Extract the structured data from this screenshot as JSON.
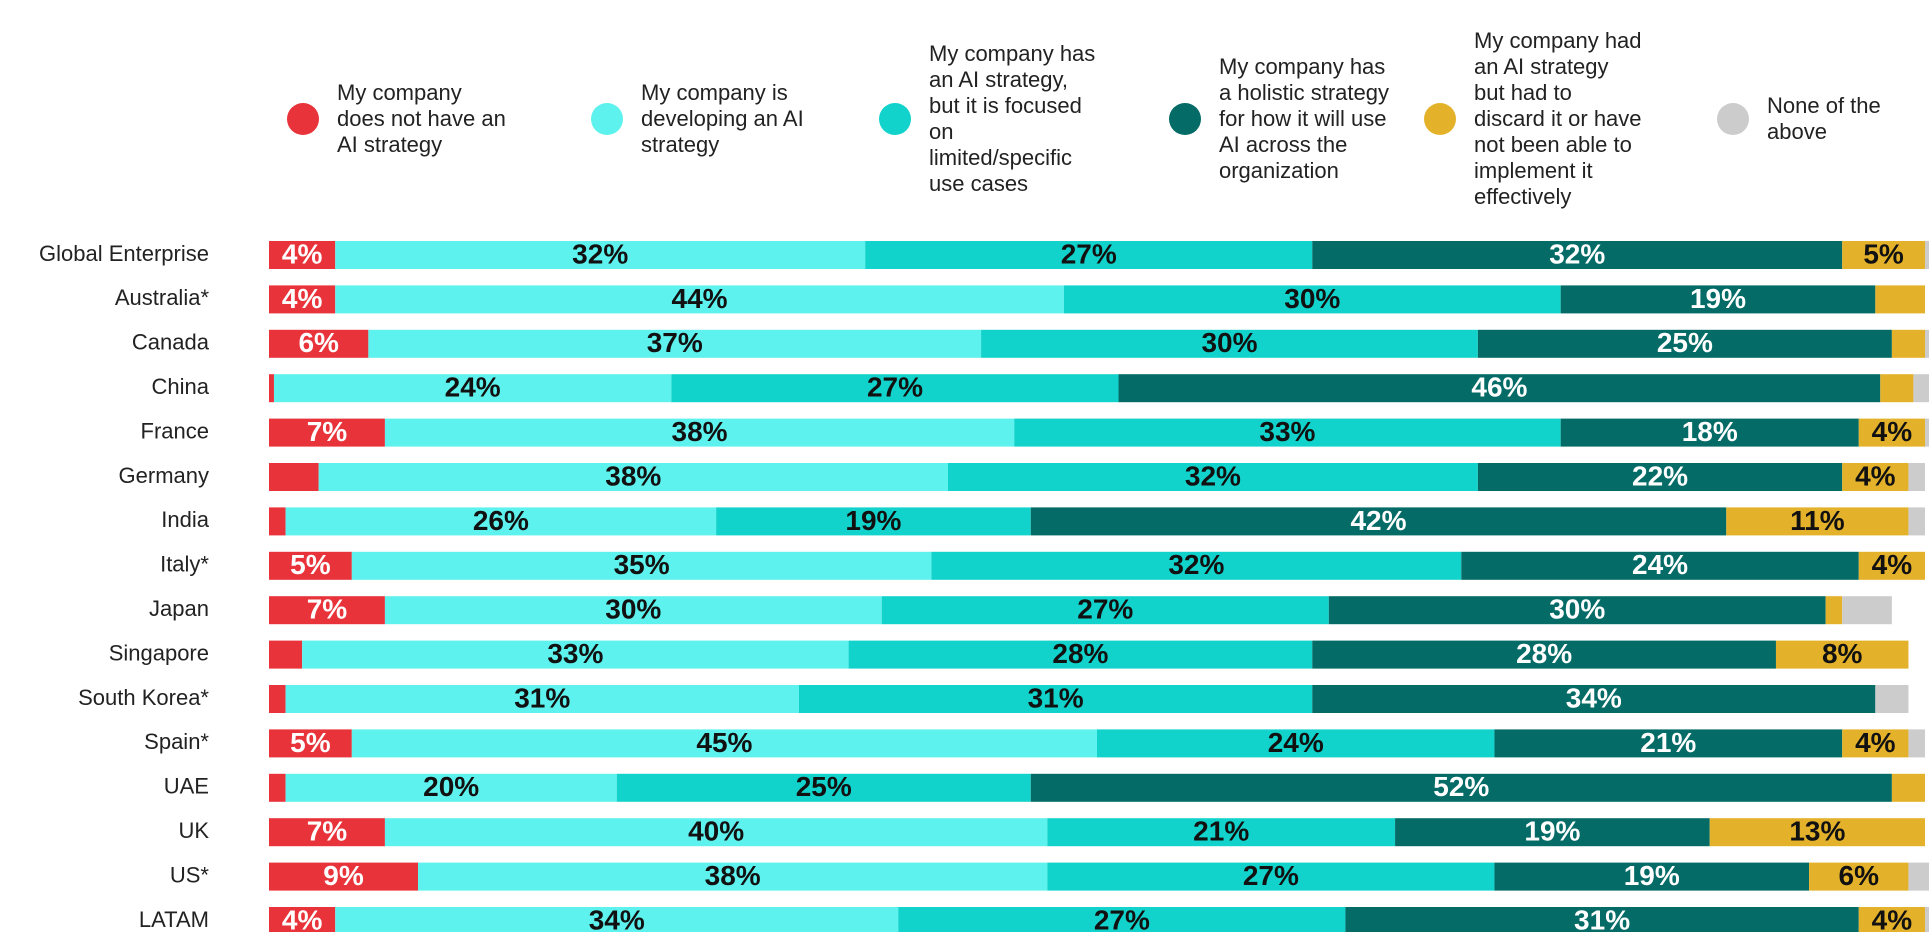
{
  "chart_data": {
    "type": "stacked-bar-horizontal",
    "categories": [
      "Global Enterprise",
      "Australia*",
      "Canada",
      "China",
      "France",
      "Germany",
      "India",
      "Italy*",
      "Japan",
      "Singapore",
      "South Korea*",
      "Spain*",
      "UAE",
      "UK",
      "US*",
      "LATAM"
    ],
    "xlim": [
      0,
      100
    ],
    "series": [
      {
        "name": "My company does not have an AI strategy",
        "color": "#e8333a",
        "label_color": "#ffffff",
        "values": [
          4,
          4,
          6,
          0.3,
          7,
          3,
          1,
          5,
          7,
          2,
          1,
          5,
          1,
          7,
          9,
          4
        ],
        "value_labels": [
          "4%",
          "4%",
          "6%",
          null,
          "7%",
          null,
          null,
          "5%",
          "7%",
          null,
          null,
          "5%",
          null,
          "7%",
          "9%",
          "4%"
        ]
      },
      {
        "name": "My company is developing an AI strategy",
        "color": "#5ef2ee",
        "label_color": "#111111",
        "values": [
          32,
          44,
          37,
          24,
          38,
          38,
          26,
          35,
          30,
          33,
          31,
          45,
          20,
          40,
          38,
          34
        ],
        "value_labels": [
          "32%",
          "44%",
          "37%",
          "24%",
          "38%",
          "38%",
          "26%",
          "35%",
          "30%",
          "33%",
          "31%",
          "45%",
          "20%",
          "40%",
          "38%",
          "34%"
        ]
      },
      {
        "name": "My company has an AI strategy, but it is focused on limited/specific use cases",
        "color": "#12d3cb",
        "label_color": "#111111",
        "values": [
          27,
          30,
          30,
          27,
          33,
          32,
          19,
          32,
          27,
          28,
          31,
          24,
          25,
          21,
          27,
          27
        ],
        "value_labels": [
          "27%",
          "30%",
          "30%",
          "27%",
          "33%",
          "32%",
          "19%",
          "32%",
          "27%",
          "28%",
          "31%",
          "24%",
          "25%",
          "21%",
          "27%",
          "27%"
        ]
      },
      {
        "name": "My company has a holistic strategy for how it will use AI across the organization",
        "color": "#046b66",
        "label_color": "#ffffff",
        "values": [
          32,
          19,
          25,
          46,
          18,
          22,
          42,
          24,
          30,
          28,
          34,
          21,
          52,
          19,
          19,
          31
        ],
        "value_labels": [
          "32%",
          "19%",
          "25%",
          "46%",
          "18%",
          "22%",
          "42%",
          "24%",
          "30%",
          "28%",
          "34%",
          "21%",
          "52%",
          "19%",
          "19%",
          "31%"
        ]
      },
      {
        "name": "My company had an AI strategy but had to discard it or have not been able to implement it effectively",
        "color": "#e4b12a",
        "label_color": "#111111",
        "values": [
          5,
          3,
          2,
          2,
          4,
          4,
          11,
          4,
          1,
          8,
          0,
          4,
          2,
          13,
          6,
          4
        ],
        "value_labels": [
          "5%",
          null,
          null,
          null,
          "4%",
          "4%",
          "11%",
          "4%",
          null,
          "8%",
          null,
          "4%",
          null,
          "13%",
          "6%",
          "4%"
        ]
      },
      {
        "name": "None of the above",
        "color": "#cccccc",
        "label_color": "#111111",
        "values": [
          1,
          0,
          2,
          1,
          1,
          1,
          1,
          0,
          3,
          0,
          2,
          1,
          0,
          0,
          2,
          1
        ],
        "value_labels": [
          null,
          null,
          null,
          null,
          null,
          null,
          null,
          null,
          null,
          null,
          null,
          null,
          null,
          null,
          null,
          null
        ]
      }
    ]
  }
}
